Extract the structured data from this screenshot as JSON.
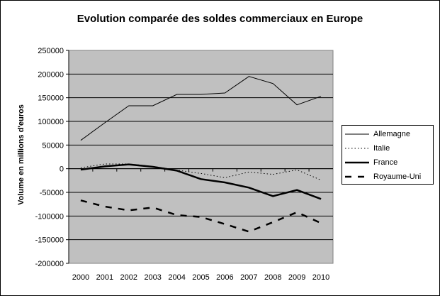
{
  "chart_data": {
    "type": "line",
    "title": "Evolution comparée des soldes commerciaux en Europe",
    "xlabel": "",
    "ylabel": "Volume en millions d'euros",
    "categories": [
      "2000",
      "2001",
      "2002",
      "2003",
      "2004",
      "2005",
      "2006",
      "2007",
      "2008",
      "2009",
      "2010"
    ],
    "ylim": [
      -200000,
      250000
    ],
    "yticks": [
      250000,
      200000,
      150000,
      100000,
      50000,
      0,
      -50000,
      -100000,
      -150000,
      -200000
    ],
    "ytick_labels": [
      "250000",
      "200000",
      "150000",
      "100000",
      "50000",
      "0",
      "-50000",
      "-100000",
      "-150000",
      "-200000"
    ],
    "grid": true,
    "legend_position": "right",
    "background": "#c0c0c0",
    "series": [
      {
        "name": "Allemagne",
        "style": "thin-solid",
        "values": [
          60000,
          97000,
          133000,
          133000,
          157000,
          157000,
          160000,
          195000,
          180000,
          135000,
          153000
        ]
      },
      {
        "name": "Italie",
        "style": "dotted",
        "values": [
          2000,
          10000,
          10000,
          5000,
          -3000,
          -10000,
          -19000,
          -7000,
          -12000,
          -2500,
          -24000
        ]
      },
      {
        "name": "France",
        "style": "thick-solid",
        "values": [
          -2000,
          5000,
          9000,
          4000,
          -4000,
          -22000,
          -29000,
          -40000,
          -58000,
          -45000,
          -64000
        ]
      },
      {
        "name": "Royaume-Uni",
        "style": "dashed",
        "values": [
          -67000,
          -80000,
          -88000,
          -82000,
          -98000,
          -102000,
          -117000,
          -133000,
          -113000,
          -92000,
          -115000
        ]
      }
    ]
  }
}
